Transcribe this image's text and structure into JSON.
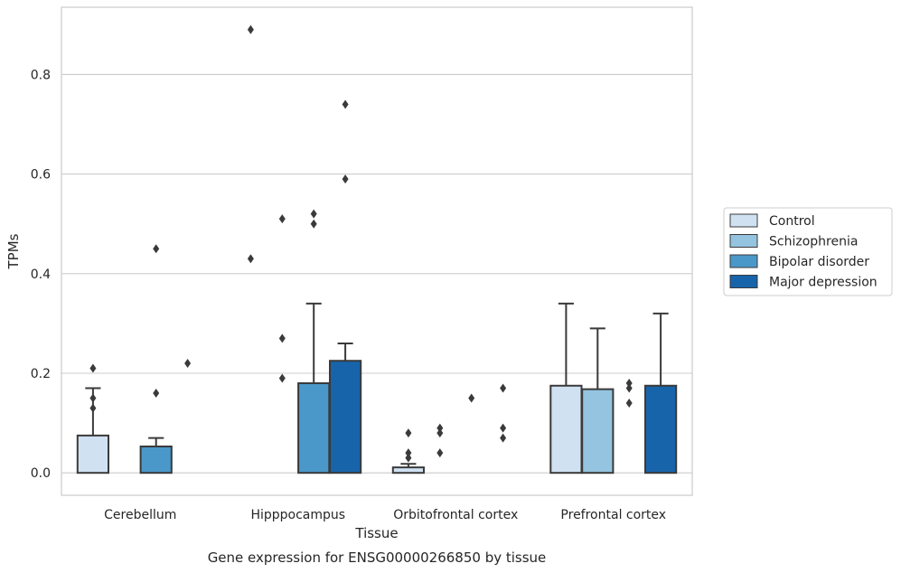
{
  "chart_data": {
    "type": "box",
    "caption": "Gene expression for ENSG00000266850 by tissue",
    "xlabel": "Tissue",
    "ylabel": "TPMs",
    "ylim": [
      -0.045,
      0.935
    ],
    "yticks": [
      0.0,
      0.2,
      0.4,
      0.6,
      0.8
    ],
    "ytick_labels": [
      "0.0",
      "0.2",
      "0.4",
      "0.6",
      "0.8"
    ],
    "categories": [
      "Cerebellum",
      "Hipppocampus",
      "Orbitofrontal cortex",
      "Prefrontal cortex"
    ],
    "grid": true,
    "legend_position": "right",
    "series": [
      {
        "name": "Control",
        "color": "#d0e1f2",
        "boxes": [
          {
            "q1": 0.0,
            "q3": 0.075,
            "whisker_low": 0.0,
            "whisker_high": 0.17,
            "fliers": [
              0.13,
              0.15,
              0.21
            ]
          },
          {
            "q1": 0.0,
            "q3": 0.0,
            "whisker_low": 0.0,
            "whisker_high": 0.0,
            "fliers": [
              0.43,
              0.89
            ]
          },
          {
            "q1": 0.0,
            "q3": 0.011,
            "whisker_low": 0.0,
            "whisker_high": 0.018,
            "fliers": [
              0.03,
              0.04,
              0.08
            ]
          },
          {
            "q1": 0.0,
            "q3": 0.175,
            "whisker_low": 0.0,
            "whisker_high": 0.34,
            "fliers": []
          }
        ]
      },
      {
        "name": "Schizophrenia",
        "color": "#94c4df",
        "boxes": [
          {
            "q1": 0.0,
            "q3": 0.0,
            "whisker_low": 0.0,
            "whisker_high": 0.0,
            "fliers": []
          },
          {
            "q1": 0.0,
            "q3": 0.0,
            "whisker_low": 0.0,
            "whisker_high": 0.0,
            "fliers": [
              0.19,
              0.27,
              0.51
            ]
          },
          {
            "q1": 0.0,
            "q3": 0.0,
            "whisker_low": 0.0,
            "whisker_high": 0.0,
            "fliers": [
              0.04,
              0.08,
              0.09
            ]
          },
          {
            "q1": 0.0,
            "q3": 0.168,
            "whisker_low": 0.0,
            "whisker_high": 0.29,
            "fliers": []
          }
        ]
      },
      {
        "name": "Bipolar disorder",
        "color": "#4a98c9",
        "boxes": [
          {
            "q1": 0.0,
            "q3": 0.053,
            "whisker_low": 0.0,
            "whisker_high": 0.07,
            "fliers": [
              0.16,
              0.45
            ]
          },
          {
            "q1": 0.0,
            "q3": 0.18,
            "whisker_low": 0.0,
            "whisker_high": 0.34,
            "fliers": [
              0.5,
              0.52
            ]
          },
          {
            "q1": 0.0,
            "q3": 0.0,
            "whisker_low": 0.0,
            "whisker_high": 0.0,
            "fliers": [
              0.15
            ]
          },
          {
            "q1": 0.0,
            "q3": 0.0,
            "whisker_low": 0.0,
            "whisker_high": 0.0,
            "fliers": [
              0.14,
              0.17,
              0.18
            ]
          }
        ]
      },
      {
        "name": "Major depression",
        "color": "#1764ab",
        "boxes": [
          {
            "q1": 0.0,
            "q3": 0.0,
            "whisker_low": 0.0,
            "whisker_high": 0.0,
            "fliers": [
              0.22
            ]
          },
          {
            "q1": 0.0,
            "q3": 0.225,
            "whisker_low": 0.0,
            "whisker_high": 0.26,
            "fliers": [
              0.59,
              0.74
            ]
          },
          {
            "q1": 0.0,
            "q3": 0.0,
            "whisker_low": 0.0,
            "whisker_high": 0.0,
            "fliers": [
              0.07,
              0.09,
              0.17
            ]
          },
          {
            "q1": 0.0,
            "q3": 0.175,
            "whisker_low": 0.0,
            "whisker_high": 0.32,
            "fliers": []
          }
        ]
      }
    ]
  }
}
